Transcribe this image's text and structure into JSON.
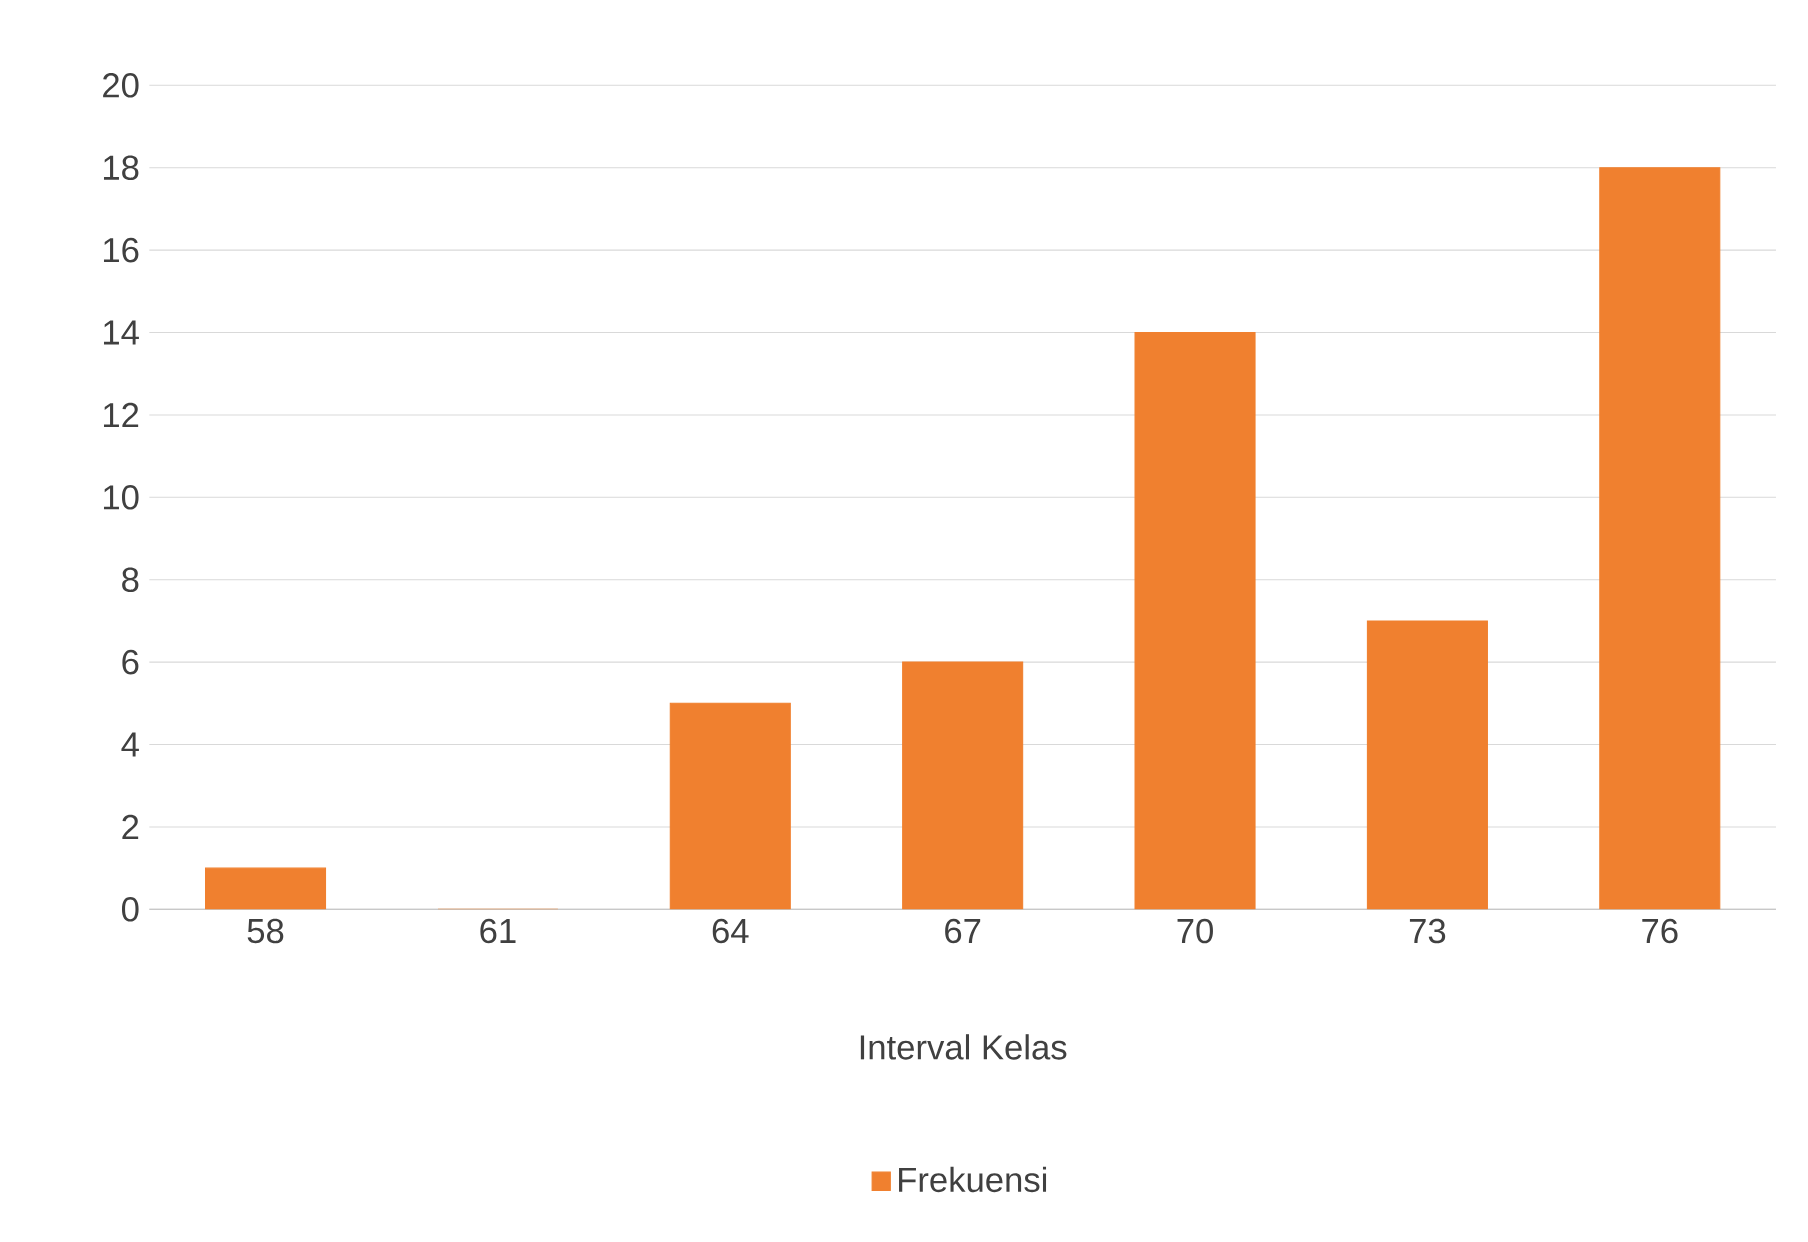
{
  "chart_data": {
    "type": "bar",
    "xlabel": "Interval Kelas",
    "categories": [
      "58",
      "61",
      "64",
      "67",
      "70",
      "73",
      "76"
    ],
    "series": [
      {
        "name": "Frekuensi",
        "color": "#f0802f",
        "values": [
          1,
          0,
          5,
          6,
          14,
          7,
          18
        ]
      }
    ],
    "ylim": [
      0,
      20
    ],
    "yticks": [
      0,
      2,
      4,
      6,
      8,
      10,
      12,
      14,
      16,
      18,
      20
    ],
    "grid": "y",
    "legend": "bottom"
  }
}
